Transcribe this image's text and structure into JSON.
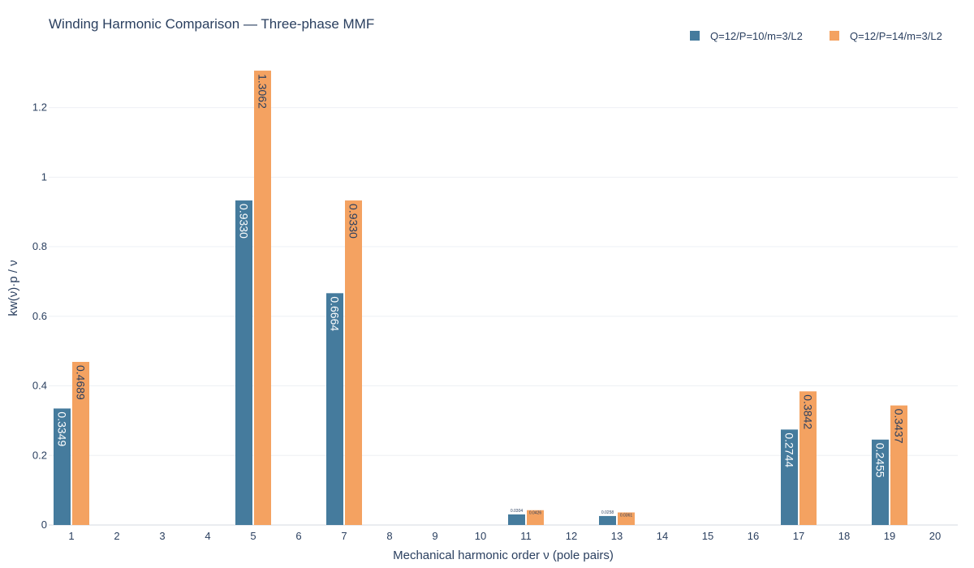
{
  "chart_data": {
    "type": "bar",
    "title": "Winding Harmonic Comparison — Three-phase MMF",
    "xlabel": "Mechanical harmonic order ν (pole pairs)",
    "ylabel": "kw(ν)·p / ν",
    "categories": [
      "1",
      "2",
      "3",
      "4",
      "5",
      "6",
      "7",
      "8",
      "9",
      "10",
      "11",
      "12",
      "13",
      "14",
      "15",
      "16",
      "17",
      "18",
      "19",
      "20"
    ],
    "ylim": [
      0,
      1.36
    ],
    "yticks": [
      0,
      0.2,
      0.4,
      0.6,
      0.8,
      1,
      1.2
    ],
    "ytick_labels": [
      "0",
      "0.2",
      "0.4",
      "0.6",
      "0.8",
      "1",
      "1.2"
    ],
    "grid": true,
    "legend_position": "top-right",
    "series": [
      {
        "name": "Q=12/P=10/m=3/L2",
        "color": "#457b9d",
        "values": [
          0.3349,
          0,
          0,
          0,
          0.933,
          0,
          0.6664,
          0,
          0,
          0,
          0.0304,
          0,
          0.0258,
          0,
          0,
          0,
          0.2744,
          0,
          0.2455,
          0
        ],
        "labels": [
          "0.3349",
          "",
          "",
          "",
          "0.9330",
          "",
          "0.6664",
          "",
          "",
          "",
          "0.0304",
          "",
          "0.0258",
          "",
          "",
          "",
          "0.2744",
          "",
          "0.2455",
          ""
        ]
      },
      {
        "name": "Q=12/P=14/m=3/L2",
        "color": "#f4a261",
        "values": [
          0.4689,
          0,
          0,
          0,
          1.3062,
          0,
          0.933,
          0,
          0,
          0,
          0.0426,
          0,
          0.0361,
          0,
          0,
          0,
          0.3842,
          0,
          0.3437,
          0
        ],
        "labels": [
          "0.4689",
          "",
          "",
          "",
          "1.3062",
          "",
          "0.9330",
          "",
          "",
          "",
          "0.0426",
          "",
          "0.0361",
          "",
          "",
          "",
          "0.3842",
          "",
          "0.3437",
          ""
        ]
      }
    ]
  }
}
